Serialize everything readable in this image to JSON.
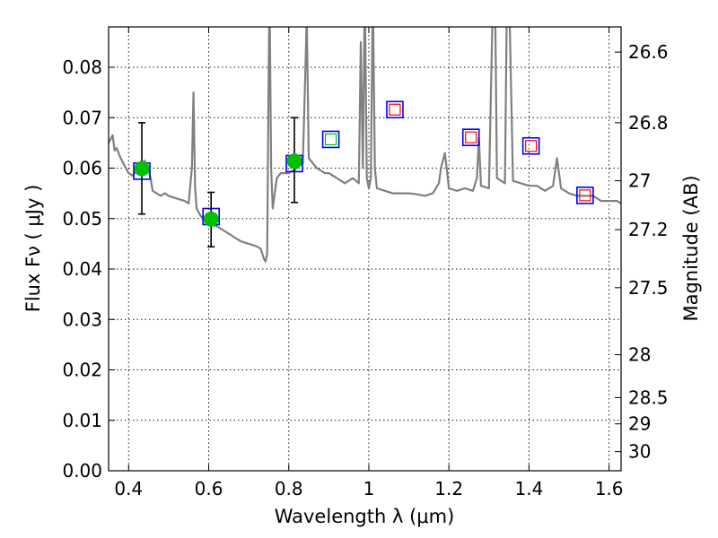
{
  "chart_data": {
    "type": "scatter",
    "title": "",
    "xlabel": "Wavelength  λ (μm)",
    "ylabel": "Flux  Fν  ( μJy )",
    "y2label": "Magnitude (AB)",
    "xlim": [
      0.35,
      1.63
    ],
    "ylim": [
      0.0,
      0.088
    ],
    "xticks": [
      0.4,
      0.6,
      0.8,
      1.0,
      1.2,
      1.4,
      1.6
    ],
    "xtick_labels": [
      "0.4",
      "0.6",
      "0.8",
      "1",
      "1.2",
      "1.4",
      "1.6"
    ],
    "yticks": [
      0.0,
      0.01,
      0.02,
      0.03,
      0.04,
      0.05,
      0.06,
      0.07,
      0.08
    ],
    "ytick_labels": [
      "0.00",
      "0.01",
      "0.02",
      "0.03",
      "0.04",
      "0.05",
      "0.06",
      "0.07",
      "0.08"
    ],
    "y2ticks": [
      {
        "label": "26.6",
        "flux": 0.083
      },
      {
        "label": "26.8",
        "flux": 0.069
      },
      {
        "label": "27",
        "flux": 0.0575
      },
      {
        "label": "27.2",
        "flux": 0.0478
      },
      {
        "label": "27.5",
        "flux": 0.0363
      },
      {
        "label": "28",
        "flux": 0.023
      },
      {
        "label": "28.5",
        "flux": 0.0145
      },
      {
        "label": "29",
        "flux": 0.0093
      },
      {
        "label": "30",
        "flux": 0.0038
      }
    ],
    "grid": true,
    "colors": {
      "model": "#808080",
      "observed_fill": "#00c000",
      "square_outer": "#0000ff",
      "square_inner_red": "#ff0000",
      "square_inner_green": "#00c000",
      "errorbar": "#000000"
    },
    "model_spectrum": {
      "x": [
        0.35,
        0.36,
        0.365,
        0.37,
        0.38,
        0.39,
        0.4,
        0.41,
        0.42,
        0.43,
        0.44,
        0.45,
        0.455,
        0.46,
        0.47,
        0.48,
        0.49,
        0.5,
        0.52,
        0.54,
        0.55,
        0.558,
        0.562,
        0.566,
        0.57,
        0.58,
        0.6,
        0.62,
        0.64,
        0.66,
        0.68,
        0.7,
        0.72,
        0.73,
        0.738,
        0.742,
        0.746,
        0.75,
        0.752,
        0.756,
        0.76,
        0.765,
        0.77,
        0.78,
        0.8,
        0.82,
        0.835,
        0.84,
        0.845,
        0.85,
        0.87,
        0.89,
        0.9,
        0.92,
        0.94,
        0.96,
        0.975,
        0.98,
        0.985,
        0.99,
        0.995,
        1.0,
        1.005,
        1.01,
        1.015,
        1.02,
        1.04,
        1.06,
        1.08,
        1.1,
        1.12,
        1.14,
        1.16,
        1.175,
        1.18,
        1.19,
        1.2,
        1.22,
        1.24,
        1.26,
        1.27,
        1.275,
        1.28,
        1.3,
        1.31,
        1.315,
        1.32,
        1.33,
        1.34,
        1.345,
        1.35,
        1.36,
        1.38,
        1.4,
        1.42,
        1.44,
        1.46,
        1.47,
        1.48,
        1.49,
        1.5,
        1.52,
        1.54,
        1.56,
        1.58,
        1.6,
        1.62,
        1.63
      ],
      "y": [
        0.065,
        0.0665,
        0.0635,
        0.064,
        0.062,
        0.0605,
        0.059,
        0.0585,
        0.0595,
        0.0605,
        0.0615,
        0.0595,
        0.058,
        0.0555,
        0.055,
        0.0545,
        0.055,
        0.0545,
        0.054,
        0.0535,
        0.053,
        0.06,
        0.075,
        0.056,
        0.052,
        0.0505,
        0.049,
        0.0485,
        0.0475,
        0.0465,
        0.0455,
        0.045,
        0.0445,
        0.044,
        0.042,
        0.0415,
        0.043,
        0.08,
        0.095,
        0.06,
        0.052,
        0.055,
        0.058,
        0.059,
        0.059,
        0.06,
        0.061,
        0.075,
        0.09,
        0.062,
        0.06,
        0.059,
        0.059,
        0.058,
        0.057,
        0.058,
        0.057,
        0.085,
        0.06,
        0.095,
        0.058,
        0.056,
        0.058,
        0.095,
        0.06,
        0.056,
        0.0555,
        0.055,
        0.055,
        0.055,
        0.0548,
        0.0545,
        0.055,
        0.057,
        0.06,
        0.063,
        0.056,
        0.0555,
        0.056,
        0.0555,
        0.058,
        0.066,
        0.0565,
        0.056,
        0.095,
        0.096,
        0.058,
        0.0575,
        0.057,
        0.095,
        0.096,
        0.0575,
        0.057,
        0.0565,
        0.0565,
        0.0555,
        0.0565,
        0.062,
        0.056,
        0.0555,
        0.055,
        0.0545,
        0.0545,
        0.0545,
        0.0535,
        0.0535,
        0.0535,
        0.053
      ]
    },
    "observed_points": [
      {
        "x": 0.433,
        "y": 0.0599,
        "yerr_low": 0.0509,
        "yerr_high": 0.069
      },
      {
        "x": 0.606,
        "y": 0.0499,
        "yerr_low": 0.0444,
        "yerr_high": 0.0552
      },
      {
        "x": 0.814,
        "y": 0.0614,
        "yerr_low": 0.0532,
        "yerr_high": 0.07
      }
    ],
    "model_band_points": [
      {
        "x": 0.433,
        "y": 0.0594,
        "inner": "none"
      },
      {
        "x": 0.606,
        "y": 0.0504,
        "inner": "none"
      },
      {
        "x": 0.814,
        "y": 0.0609,
        "inner": "none"
      },
      {
        "x": 0.905,
        "y": 0.0657,
        "inner": "green"
      },
      {
        "x": 1.065,
        "y": 0.0716,
        "inner": "red"
      },
      {
        "x": 1.255,
        "y": 0.0661,
        "inner": "red"
      },
      {
        "x": 1.405,
        "y": 0.0644,
        "inner": "red"
      },
      {
        "x": 1.54,
        "y": 0.0546,
        "inner": "red"
      }
    ]
  }
}
